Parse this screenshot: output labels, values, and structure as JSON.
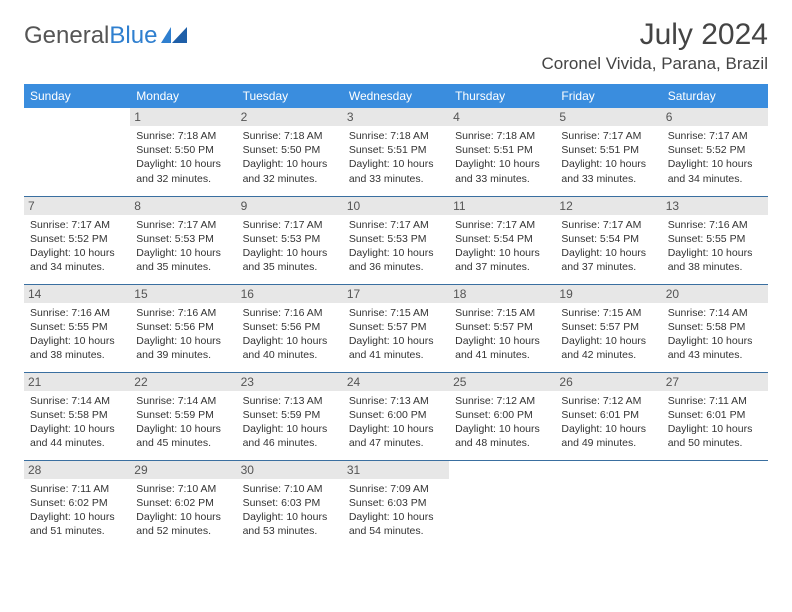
{
  "brand": {
    "part1": "General",
    "part2": "Blue"
  },
  "title": "July 2024",
  "location": "Coronel Vivida, Parana, Brazil",
  "colors": {
    "header_bg": "#3a8dde",
    "header_text": "#ffffff",
    "row_divider": "#3a6fa0",
    "daynum_bg": "#e7e7e7",
    "text": "#333333",
    "logo_gray": "#555555",
    "logo_blue": "#2f7fcf",
    "page_bg": "#ffffff"
  },
  "typography": {
    "title_fontsize": 30,
    "location_fontsize": 17,
    "weekday_fontsize": 12,
    "daynum_fontsize": 12,
    "cell_fontsize": 10.5
  },
  "weekdays": [
    "Sunday",
    "Monday",
    "Tuesday",
    "Wednesday",
    "Thursday",
    "Friday",
    "Saturday"
  ],
  "weeks": [
    [
      null,
      {
        "n": "1",
        "sunrise": "7:18 AM",
        "sunset": "5:50 PM",
        "daylight": "10 hours and 32 minutes."
      },
      {
        "n": "2",
        "sunrise": "7:18 AM",
        "sunset": "5:50 PM",
        "daylight": "10 hours and 32 minutes."
      },
      {
        "n": "3",
        "sunrise": "7:18 AM",
        "sunset": "5:51 PM",
        "daylight": "10 hours and 33 minutes."
      },
      {
        "n": "4",
        "sunrise": "7:18 AM",
        "sunset": "5:51 PM",
        "daylight": "10 hours and 33 minutes."
      },
      {
        "n": "5",
        "sunrise": "7:17 AM",
        "sunset": "5:51 PM",
        "daylight": "10 hours and 33 minutes."
      },
      {
        "n": "6",
        "sunrise": "7:17 AM",
        "sunset": "5:52 PM",
        "daylight": "10 hours and 34 minutes."
      }
    ],
    [
      {
        "n": "7",
        "sunrise": "7:17 AM",
        "sunset": "5:52 PM",
        "daylight": "10 hours and 34 minutes."
      },
      {
        "n": "8",
        "sunrise": "7:17 AM",
        "sunset": "5:53 PM",
        "daylight": "10 hours and 35 minutes."
      },
      {
        "n": "9",
        "sunrise": "7:17 AM",
        "sunset": "5:53 PM",
        "daylight": "10 hours and 35 minutes."
      },
      {
        "n": "10",
        "sunrise": "7:17 AM",
        "sunset": "5:53 PM",
        "daylight": "10 hours and 36 minutes."
      },
      {
        "n": "11",
        "sunrise": "7:17 AM",
        "sunset": "5:54 PM",
        "daylight": "10 hours and 37 minutes."
      },
      {
        "n": "12",
        "sunrise": "7:17 AM",
        "sunset": "5:54 PM",
        "daylight": "10 hours and 37 minutes."
      },
      {
        "n": "13",
        "sunrise": "7:16 AM",
        "sunset": "5:55 PM",
        "daylight": "10 hours and 38 minutes."
      }
    ],
    [
      {
        "n": "14",
        "sunrise": "7:16 AM",
        "sunset": "5:55 PM",
        "daylight": "10 hours and 38 minutes."
      },
      {
        "n": "15",
        "sunrise": "7:16 AM",
        "sunset": "5:56 PM",
        "daylight": "10 hours and 39 minutes."
      },
      {
        "n": "16",
        "sunrise": "7:16 AM",
        "sunset": "5:56 PM",
        "daylight": "10 hours and 40 minutes."
      },
      {
        "n": "17",
        "sunrise": "7:15 AM",
        "sunset": "5:57 PM",
        "daylight": "10 hours and 41 minutes."
      },
      {
        "n": "18",
        "sunrise": "7:15 AM",
        "sunset": "5:57 PM",
        "daylight": "10 hours and 41 minutes."
      },
      {
        "n": "19",
        "sunrise": "7:15 AM",
        "sunset": "5:57 PM",
        "daylight": "10 hours and 42 minutes."
      },
      {
        "n": "20",
        "sunrise": "7:14 AM",
        "sunset": "5:58 PM",
        "daylight": "10 hours and 43 minutes."
      }
    ],
    [
      {
        "n": "21",
        "sunrise": "7:14 AM",
        "sunset": "5:58 PM",
        "daylight": "10 hours and 44 minutes."
      },
      {
        "n": "22",
        "sunrise": "7:14 AM",
        "sunset": "5:59 PM",
        "daylight": "10 hours and 45 minutes."
      },
      {
        "n": "23",
        "sunrise": "7:13 AM",
        "sunset": "5:59 PM",
        "daylight": "10 hours and 46 minutes."
      },
      {
        "n": "24",
        "sunrise": "7:13 AM",
        "sunset": "6:00 PM",
        "daylight": "10 hours and 47 minutes."
      },
      {
        "n": "25",
        "sunrise": "7:12 AM",
        "sunset": "6:00 PM",
        "daylight": "10 hours and 48 minutes."
      },
      {
        "n": "26",
        "sunrise": "7:12 AM",
        "sunset": "6:01 PM",
        "daylight": "10 hours and 49 minutes."
      },
      {
        "n": "27",
        "sunrise": "7:11 AM",
        "sunset": "6:01 PM",
        "daylight": "10 hours and 50 minutes."
      }
    ],
    [
      {
        "n": "28",
        "sunrise": "7:11 AM",
        "sunset": "6:02 PM",
        "daylight": "10 hours and 51 minutes."
      },
      {
        "n": "29",
        "sunrise": "7:10 AM",
        "sunset": "6:02 PM",
        "daylight": "10 hours and 52 minutes."
      },
      {
        "n": "30",
        "sunrise": "7:10 AM",
        "sunset": "6:03 PM",
        "daylight": "10 hours and 53 minutes."
      },
      {
        "n": "31",
        "sunrise": "7:09 AM",
        "sunset": "6:03 PM",
        "daylight": "10 hours and 54 minutes."
      },
      null,
      null,
      null
    ]
  ],
  "labels": {
    "sunrise": "Sunrise:",
    "sunset": "Sunset:",
    "daylight": "Daylight:"
  }
}
